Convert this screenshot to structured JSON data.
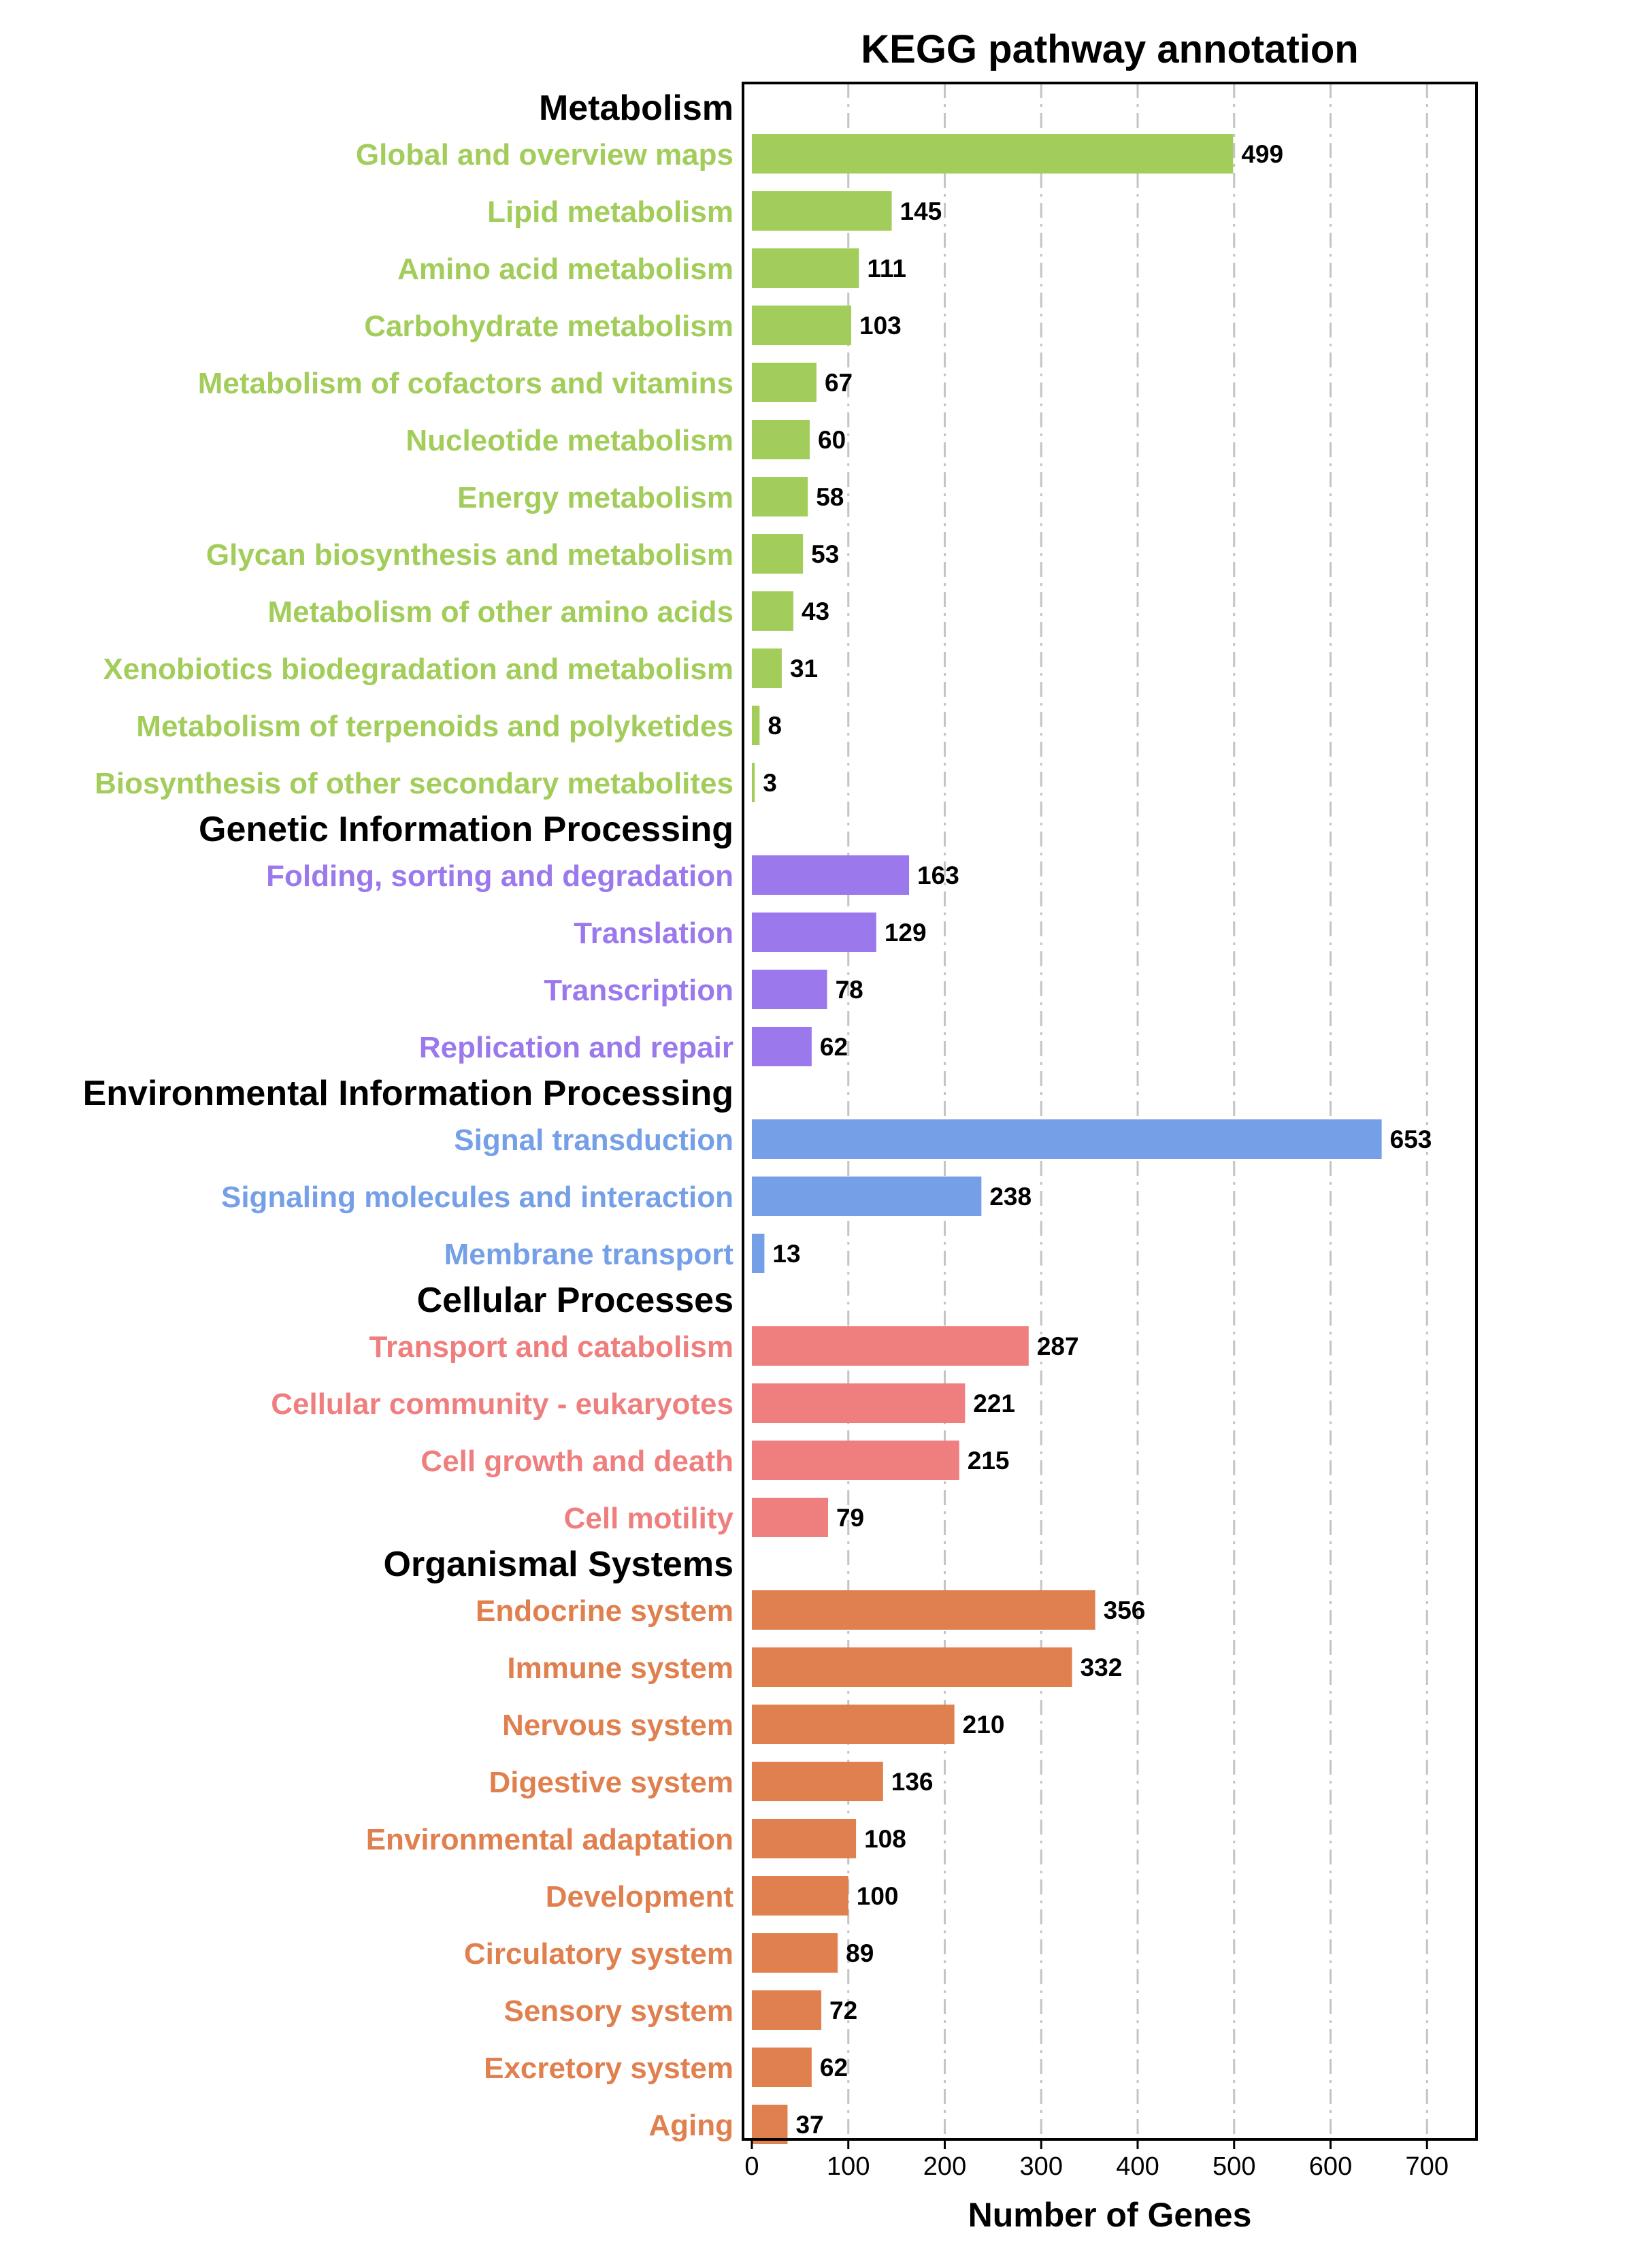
{
  "chart_data": {
    "type": "bar",
    "orientation": "horizontal",
    "title": "KEGG pathway annotation",
    "xlabel": "Number of Genes",
    "xlim": [
      0,
      760
    ],
    "xticks": [
      0,
      100,
      200,
      300,
      400,
      500,
      600,
      700
    ],
    "grid": "vertical dashed",
    "groups": [
      {
        "name": "Metabolism",
        "color": "#a2cd5a",
        "items": [
          {
            "label": "Global and overview maps",
            "value": 499
          },
          {
            "label": "Lipid metabolism",
            "value": 145
          },
          {
            "label": "Amino acid metabolism",
            "value": 111
          },
          {
            "label": "Carbohydrate metabolism",
            "value": 103
          },
          {
            "label": "Metabolism of cofactors and vitamins",
            "value": 67
          },
          {
            "label": "Nucleotide metabolism",
            "value": 60
          },
          {
            "label": "Energy metabolism",
            "value": 58
          },
          {
            "label": "Glycan biosynthesis and metabolism",
            "value": 53
          },
          {
            "label": "Metabolism of other amino acids",
            "value": 43
          },
          {
            "label": "Xenobiotics biodegradation and metabolism",
            "value": 31
          },
          {
            "label": "Metabolism of terpenoids and polyketides",
            "value": 8
          },
          {
            "label": "Biosynthesis of other secondary metabolites",
            "value": 3
          }
        ]
      },
      {
        "name": "Genetic Information Processing",
        "color": "#9b79ec",
        "items": [
          {
            "label": "Folding, sorting and degradation",
            "value": 163
          },
          {
            "label": "Translation",
            "value": 129
          },
          {
            "label": "Transcription",
            "value": 78
          },
          {
            "label": "Replication and repair",
            "value": 62
          }
        ]
      },
      {
        "name": "Environmental Information Processing",
        "color": "#759fe6",
        "items": [
          {
            "label": "Signal transduction",
            "value": 653
          },
          {
            "label": "Signaling molecules and interaction",
            "value": 238
          },
          {
            "label": "Membrane transport",
            "value": 13
          }
        ]
      },
      {
        "name": "Cellular Processes",
        "color": "#ef7f7f",
        "items": [
          {
            "label": "Transport and catabolism",
            "value": 287
          },
          {
            "label": "Cellular community - eukaryotes",
            "value": 221
          },
          {
            "label": "Cell growth and death",
            "value": 215
          },
          {
            "label": "Cell motility",
            "value": 79
          }
        ]
      },
      {
        "name": "Organismal Systems",
        "color": "#e0804f",
        "items": [
          {
            "label": "Endocrine system",
            "value": 356
          },
          {
            "label": "Immune system",
            "value": 332
          },
          {
            "label": "Nervous system",
            "value": 210
          },
          {
            "label": "Digestive system",
            "value": 136
          },
          {
            "label": "Environmental adaptation",
            "value": 108
          },
          {
            "label": "Development",
            "value": 100
          },
          {
            "label": "Circulatory system",
            "value": 89
          },
          {
            "label": "Sensory system",
            "value": 72
          },
          {
            "label": "Excretory system",
            "value": 62
          },
          {
            "label": "Aging",
            "value": 37
          }
        ]
      }
    ]
  }
}
